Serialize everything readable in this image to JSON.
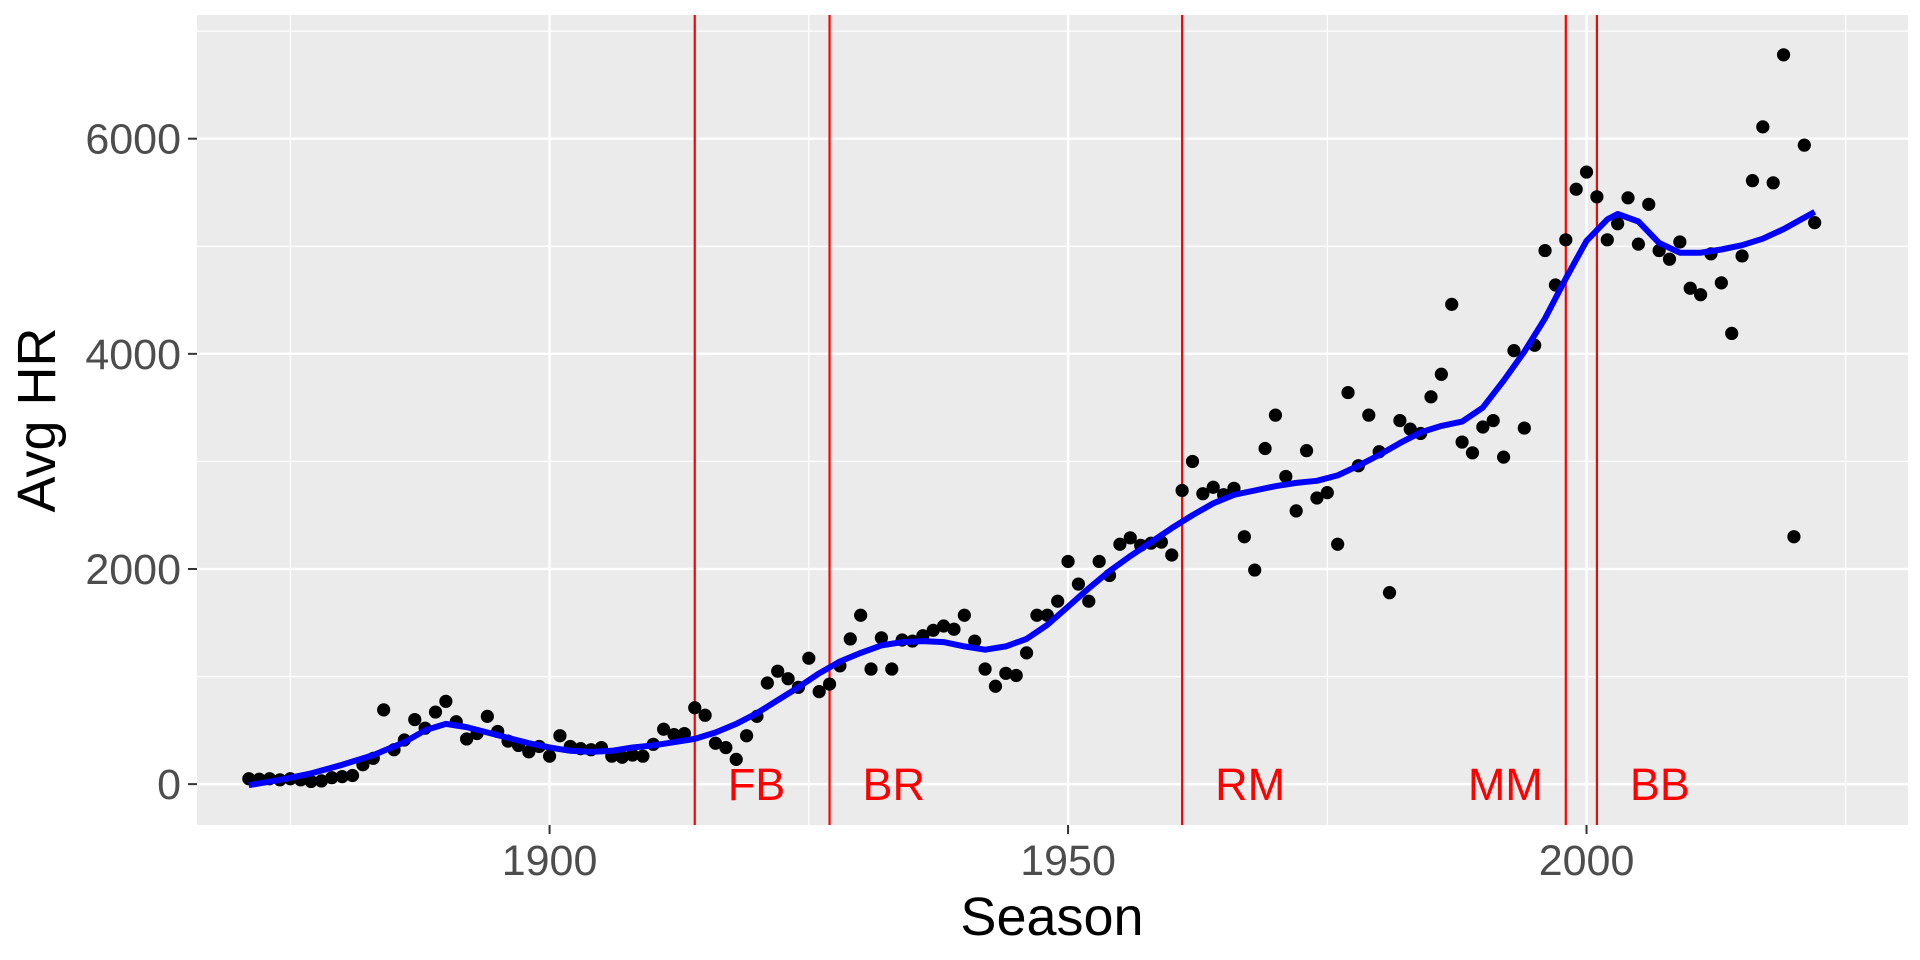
{
  "chart_data": {
    "type": "scatter",
    "xlabel": "Season",
    "ylabel": "Avg HR",
    "xlim": [
      1866,
      2031
    ],
    "ylim": [
      -380,
      7150
    ],
    "x_ticks": [
      1900,
      1950,
      2000
    ],
    "x_minor_ticks": [
      1875,
      1925,
      1975,
      2025
    ],
    "y_ticks": [
      0,
      2000,
      4000,
      6000
    ],
    "y_minor_ticks": [
      1000,
      3000,
      5000,
      7000
    ],
    "grid": true,
    "colors": {
      "panel": "#ebebeb",
      "grid": "#ffffff",
      "points": "#000000",
      "smooth": "#0000ff",
      "era_lines": "#ff0000"
    },
    "points": [
      {
        "x": 1871,
        "y": 50
      },
      {
        "x": 1872,
        "y": 45
      },
      {
        "x": 1873,
        "y": 50
      },
      {
        "x": 1874,
        "y": 40
      },
      {
        "x": 1875,
        "y": 50
      },
      {
        "x": 1876,
        "y": 40
      },
      {
        "x": 1877,
        "y": 25
      },
      {
        "x": 1878,
        "y": 30
      },
      {
        "x": 1879,
        "y": 60
      },
      {
        "x": 1880,
        "y": 70
      },
      {
        "x": 1881,
        "y": 80
      },
      {
        "x": 1882,
        "y": 180
      },
      {
        "x": 1883,
        "y": 240
      },
      {
        "x": 1884,
        "y": 690
      },
      {
        "x": 1885,
        "y": 320
      },
      {
        "x": 1886,
        "y": 410
      },
      {
        "x": 1887,
        "y": 600
      },
      {
        "x": 1888,
        "y": 520
      },
      {
        "x": 1889,
        "y": 670
      },
      {
        "x": 1890,
        "y": 770
      },
      {
        "x": 1891,
        "y": 580
      },
      {
        "x": 1892,
        "y": 420
      },
      {
        "x": 1893,
        "y": 470
      },
      {
        "x": 1894,
        "y": 630
      },
      {
        "x": 1895,
        "y": 490
      },
      {
        "x": 1896,
        "y": 400
      },
      {
        "x": 1897,
        "y": 360
      },
      {
        "x": 1898,
        "y": 300
      },
      {
        "x": 1899,
        "y": 350
      },
      {
        "x": 1900,
        "y": 260
      },
      {
        "x": 1901,
        "y": 450
      },
      {
        "x": 1902,
        "y": 350
      },
      {
        "x": 1903,
        "y": 330
      },
      {
        "x": 1904,
        "y": 320
      },
      {
        "x": 1905,
        "y": 340
      },
      {
        "x": 1906,
        "y": 260
      },
      {
        "x": 1907,
        "y": 250
      },
      {
        "x": 1908,
        "y": 270
      },
      {
        "x": 1909,
        "y": 260
      },
      {
        "x": 1910,
        "y": 370
      },
      {
        "x": 1911,
        "y": 510
      },
      {
        "x": 1912,
        "y": 460
      },
      {
        "x": 1913,
        "y": 470
      },
      {
        "x": 1914,
        "y": 710
      },
      {
        "x": 1915,
        "y": 640
      },
      {
        "x": 1916,
        "y": 380
      },
      {
        "x": 1917,
        "y": 340
      },
      {
        "x": 1918,
        "y": 230
      },
      {
        "x": 1919,
        "y": 450
      },
      {
        "x": 1920,
        "y": 630
      },
      {
        "x": 1921,
        "y": 940
      },
      {
        "x": 1922,
        "y": 1050
      },
      {
        "x": 1923,
        "y": 980
      },
      {
        "x": 1924,
        "y": 900
      },
      {
        "x": 1925,
        "y": 1170
      },
      {
        "x": 1926,
        "y": 860
      },
      {
        "x": 1927,
        "y": 930
      },
      {
        "x": 1928,
        "y": 1100
      },
      {
        "x": 1929,
        "y": 1350
      },
      {
        "x": 1930,
        "y": 1570
      },
      {
        "x": 1931,
        "y": 1070
      },
      {
        "x": 1932,
        "y": 1360
      },
      {
        "x": 1933,
        "y": 1070
      },
      {
        "x": 1934,
        "y": 1340
      },
      {
        "x": 1935,
        "y": 1330
      },
      {
        "x": 1936,
        "y": 1380
      },
      {
        "x": 1937,
        "y": 1430
      },
      {
        "x": 1938,
        "y": 1470
      },
      {
        "x": 1939,
        "y": 1440
      },
      {
        "x": 1940,
        "y": 1570
      },
      {
        "x": 1941,
        "y": 1330
      },
      {
        "x": 1942,
        "y": 1070
      },
      {
        "x": 1943,
        "y": 910
      },
      {
        "x": 1944,
        "y": 1030
      },
      {
        "x": 1945,
        "y": 1010
      },
      {
        "x": 1946,
        "y": 1220
      },
      {
        "x": 1947,
        "y": 1570
      },
      {
        "x": 1948,
        "y": 1570
      },
      {
        "x": 1949,
        "y": 1700
      },
      {
        "x": 1950,
        "y": 2070
      },
      {
        "x": 1951,
        "y": 1860
      },
      {
        "x": 1952,
        "y": 1700
      },
      {
        "x": 1953,
        "y": 2070
      },
      {
        "x": 1954,
        "y": 1940
      },
      {
        "x": 1955,
        "y": 2230
      },
      {
        "x": 1956,
        "y": 2290
      },
      {
        "x": 1957,
        "y": 2220
      },
      {
        "x": 1958,
        "y": 2240
      },
      {
        "x": 1959,
        "y": 2250
      },
      {
        "x": 1960,
        "y": 2130
      },
      {
        "x": 1961,
        "y": 2730
      },
      {
        "x": 1962,
        "y": 3000
      },
      {
        "x": 1963,
        "y": 2700
      },
      {
        "x": 1964,
        "y": 2760
      },
      {
        "x": 1965,
        "y": 2690
      },
      {
        "x": 1966,
        "y": 2750
      },
      {
        "x": 1967,
        "y": 2300
      },
      {
        "x": 1968,
        "y": 1990
      },
      {
        "x": 1969,
        "y": 3120
      },
      {
        "x": 1970,
        "y": 3430
      },
      {
        "x": 1971,
        "y": 2860
      },
      {
        "x": 1972,
        "y": 2540
      },
      {
        "x": 1973,
        "y": 3100
      },
      {
        "x": 1974,
        "y": 2660
      },
      {
        "x": 1975,
        "y": 2710
      },
      {
        "x": 1976,
        "y": 2230
      },
      {
        "x": 1977,
        "y": 3640
      },
      {
        "x": 1978,
        "y": 2960
      },
      {
        "x": 1979,
        "y": 3430
      },
      {
        "x": 1980,
        "y": 3090
      },
      {
        "x": 1981,
        "y": 1780
      },
      {
        "x": 1982,
        "y": 3380
      },
      {
        "x": 1983,
        "y": 3300
      },
      {
        "x": 1984,
        "y": 3260
      },
      {
        "x": 1985,
        "y": 3600
      },
      {
        "x": 1986,
        "y": 3810
      },
      {
        "x": 1987,
        "y": 4460
      },
      {
        "x": 1988,
        "y": 3180
      },
      {
        "x": 1989,
        "y": 3080
      },
      {
        "x": 1990,
        "y": 3320
      },
      {
        "x": 1991,
        "y": 3380
      },
      {
        "x": 1992,
        "y": 3040
      },
      {
        "x": 1993,
        "y": 4030
      },
      {
        "x": 1994,
        "y": 3310
      },
      {
        "x": 1995,
        "y": 4080
      },
      {
        "x": 1996,
        "y": 4960
      },
      {
        "x": 1997,
        "y": 4640
      },
      {
        "x": 1998,
        "y": 5060
      },
      {
        "x": 1999,
        "y": 5530
      },
      {
        "x": 2000,
        "y": 5690
      },
      {
        "x": 2001,
        "y": 5460
      },
      {
        "x": 2002,
        "y": 5060
      },
      {
        "x": 2003,
        "y": 5210
      },
      {
        "x": 2004,
        "y": 5450
      },
      {
        "x": 2005,
        "y": 5020
      },
      {
        "x": 2006,
        "y": 5390
      },
      {
        "x": 2007,
        "y": 4960
      },
      {
        "x": 2008,
        "y": 4880
      },
      {
        "x": 2009,
        "y": 5040
      },
      {
        "x": 2010,
        "y": 4610
      },
      {
        "x": 2011,
        "y": 4550
      },
      {
        "x": 2012,
        "y": 4930
      },
      {
        "x": 2013,
        "y": 4660
      },
      {
        "x": 2014,
        "y": 4190
      },
      {
        "x": 2015,
        "y": 4910
      },
      {
        "x": 2016,
        "y": 5610
      },
      {
        "x": 2017,
        "y": 6110
      },
      {
        "x": 2018,
        "y": 5590
      },
      {
        "x": 2019,
        "y": 6780
      },
      {
        "x": 2020,
        "y": 2300
      },
      {
        "x": 2021,
        "y": 5940
      },
      {
        "x": 2022,
        "y": 5220
      }
    ],
    "smooth_line": [
      {
        "x": 1871,
        "y": -10
      },
      {
        "x": 1874,
        "y": 40
      },
      {
        "x": 1877,
        "y": 100
      },
      {
        "x": 1880,
        "y": 180
      },
      {
        "x": 1883,
        "y": 270
      },
      {
        "x": 1886,
        "y": 390
      },
      {
        "x": 1888,
        "y": 500
      },
      {
        "x": 1890,
        "y": 560
      },
      {
        "x": 1892,
        "y": 530
      },
      {
        "x": 1894,
        "y": 480
      },
      {
        "x": 1896,
        "y": 430
      },
      {
        "x": 1898,
        "y": 380
      },
      {
        "x": 1900,
        "y": 340
      },
      {
        "x": 1902,
        "y": 310
      },
      {
        "x": 1904,
        "y": 300
      },
      {
        "x": 1906,
        "y": 310
      },
      {
        "x": 1908,
        "y": 340
      },
      {
        "x": 1910,
        "y": 360
      },
      {
        "x": 1912,
        "y": 390
      },
      {
        "x": 1914,
        "y": 420
      },
      {
        "x": 1916,
        "y": 480
      },
      {
        "x": 1918,
        "y": 560
      },
      {
        "x": 1920,
        "y": 660
      },
      {
        "x": 1922,
        "y": 780
      },
      {
        "x": 1924,
        "y": 900
      },
      {
        "x": 1926,
        "y": 1030
      },
      {
        "x": 1928,
        "y": 1140
      },
      {
        "x": 1930,
        "y": 1220
      },
      {
        "x": 1932,
        "y": 1290
      },
      {
        "x": 1934,
        "y": 1320
      },
      {
        "x": 1936,
        "y": 1330
      },
      {
        "x": 1938,
        "y": 1320
      },
      {
        "x": 1940,
        "y": 1280
      },
      {
        "x": 1942,
        "y": 1250
      },
      {
        "x": 1944,
        "y": 1280
      },
      {
        "x": 1946,
        "y": 1350
      },
      {
        "x": 1948,
        "y": 1480
      },
      {
        "x": 1950,
        "y": 1650
      },
      {
        "x": 1952,
        "y": 1820
      },
      {
        "x": 1954,
        "y": 1980
      },
      {
        "x": 1956,
        "y": 2120
      },
      {
        "x": 1958,
        "y": 2250
      },
      {
        "x": 1960,
        "y": 2380
      },
      {
        "x": 1962,
        "y": 2500
      },
      {
        "x": 1964,
        "y": 2610
      },
      {
        "x": 1966,
        "y": 2690
      },
      {
        "x": 1968,
        "y": 2730
      },
      {
        "x": 1970,
        "y": 2770
      },
      {
        "x": 1972,
        "y": 2800
      },
      {
        "x": 1974,
        "y": 2820
      },
      {
        "x": 1976,
        "y": 2870
      },
      {
        "x": 1978,
        "y": 2960
      },
      {
        "x": 1980,
        "y": 3060
      },
      {
        "x": 1982,
        "y": 3170
      },
      {
        "x": 1984,
        "y": 3270
      },
      {
        "x": 1986,
        "y": 3330
      },
      {
        "x": 1988,
        "y": 3370
      },
      {
        "x": 1990,
        "y": 3500
      },
      {
        "x": 1992,
        "y": 3750
      },
      {
        "x": 1994,
        "y": 4020
      },
      {
        "x": 1996,
        "y": 4330
      },
      {
        "x": 1998,
        "y": 4700
      },
      {
        "x": 2000,
        "y": 5050
      },
      {
        "x": 2002,
        "y": 5250
      },
      {
        "x": 2003,
        "y": 5300
      },
      {
        "x": 2005,
        "y": 5230
      },
      {
        "x": 2007,
        "y": 5030
      },
      {
        "x": 2009,
        "y": 4940
      },
      {
        "x": 2011,
        "y": 4940
      },
      {
        "x": 2013,
        "y": 4970
      },
      {
        "x": 2015,
        "y": 5010
      },
      {
        "x": 2017,
        "y": 5070
      },
      {
        "x": 2019,
        "y": 5160
      },
      {
        "x": 2022,
        "y": 5320
      }
    ],
    "vertical_lines": [
      {
        "x": 1914,
        "label": "FB",
        "label_anchor": "start"
      },
      {
        "x": 1927,
        "label": "BR",
        "label_anchor": "start"
      },
      {
        "x": 1961,
        "label": "RM",
        "label_anchor": "start"
      },
      {
        "x": 1998,
        "label": "MM",
        "label_anchor": "end"
      },
      {
        "x": 2001,
        "label": "BB",
        "label_anchor": "start"
      }
    ]
  }
}
